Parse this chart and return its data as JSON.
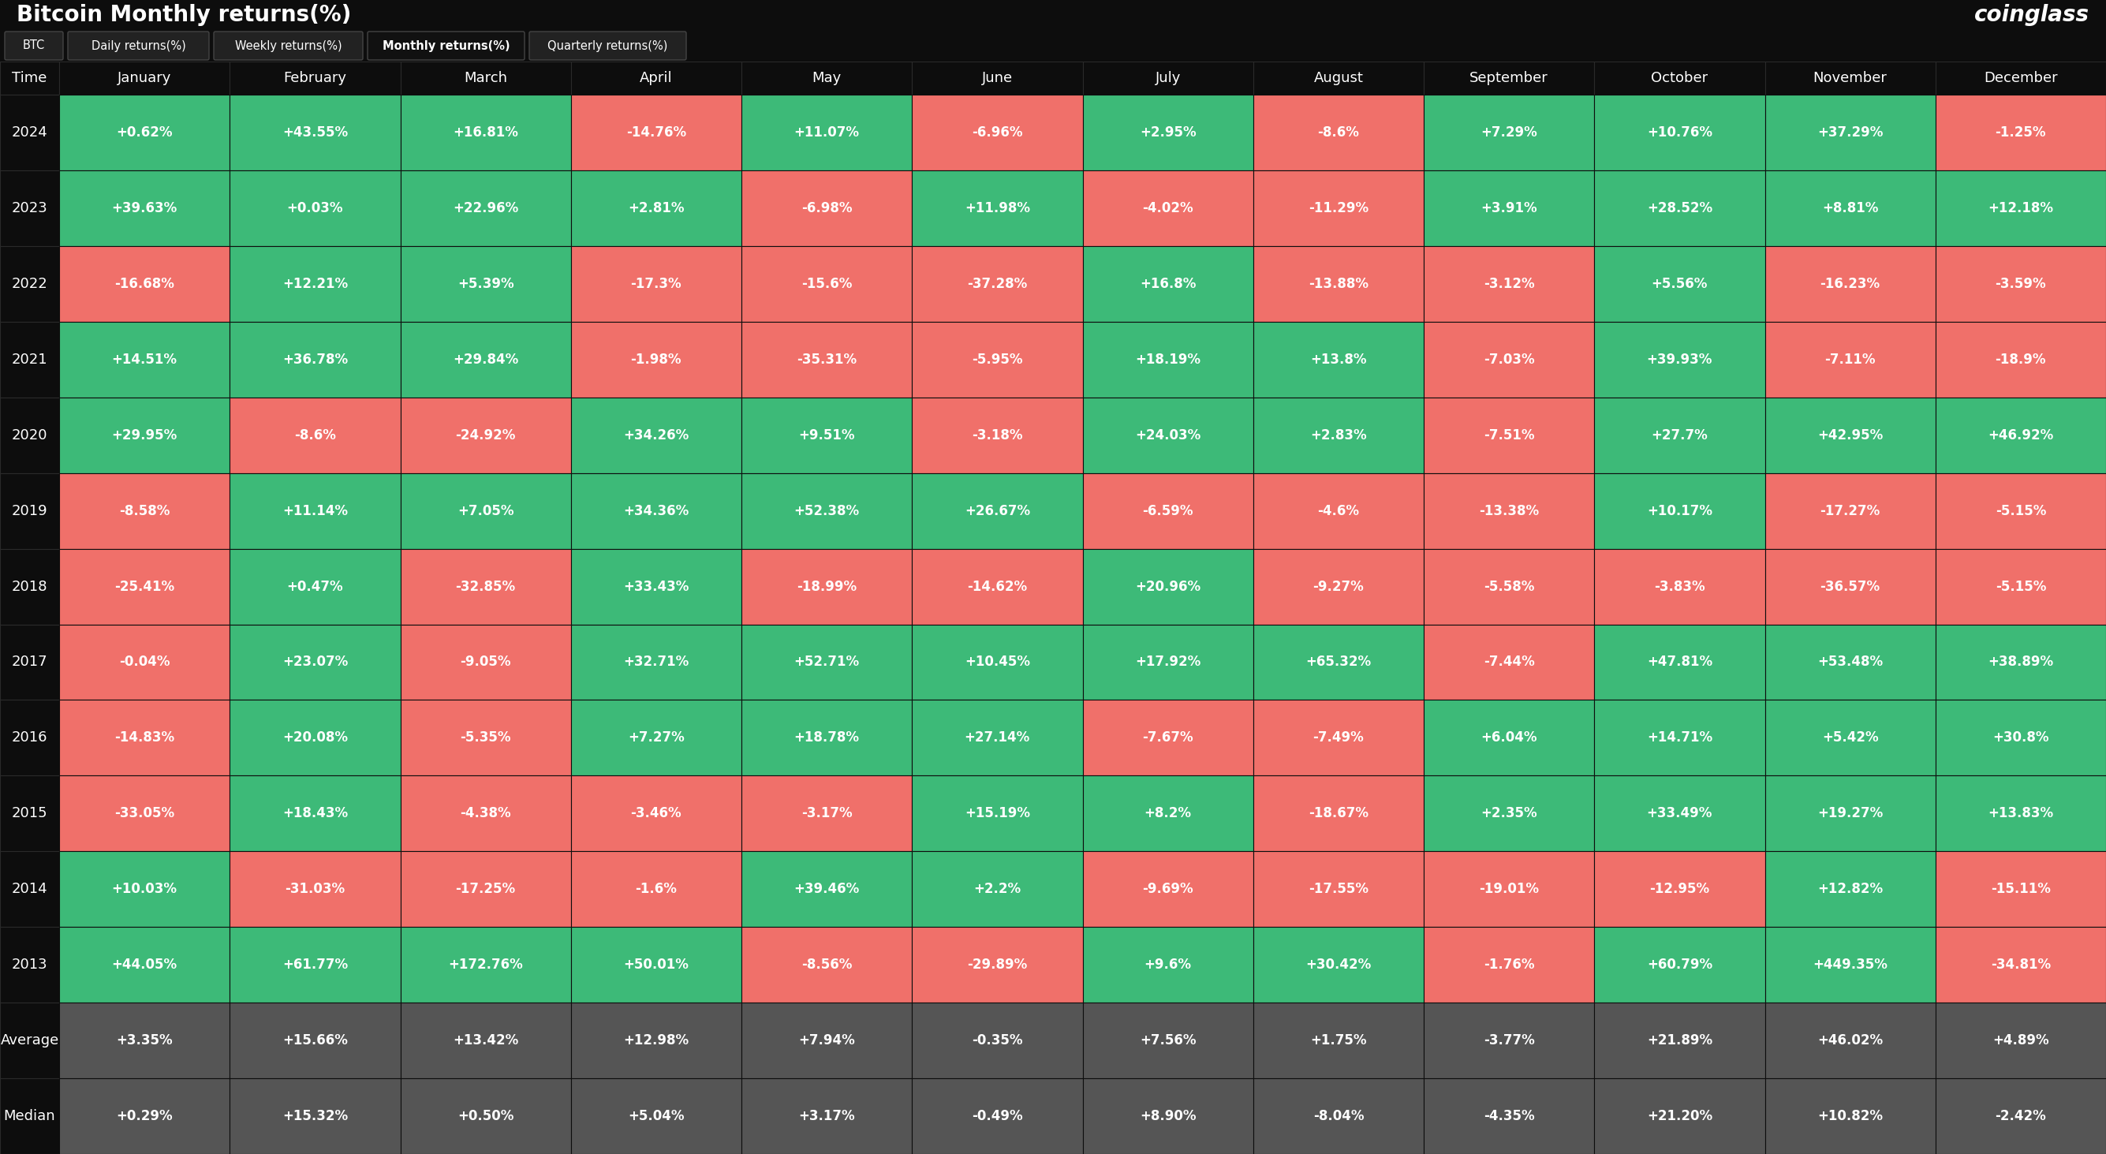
{
  "title": "Bitcoin Monthly returns(%)",
  "watermark": "coinglass",
  "background_color": "#0d0d0d",
  "header_text_color": "#ffffff",
  "cell_text_color": "#ffffff",
  "positive_color": "#3dba78",
  "negative_color": "#f0706a",
  "avg_med_color": "#555555",
  "columns": [
    "Time",
    "January",
    "February",
    "March",
    "April",
    "May",
    "June",
    "July",
    "August",
    "September",
    "October",
    "November",
    "December"
  ],
  "rows": [
    {
      "year": "2024",
      "values": [
        "+0.62%",
        "+43.55%",
        "+16.81%",
        "-14.76%",
        "+11.07%",
        "-6.96%",
        "+2.95%",
        "-8.6%",
        "+7.29%",
        "+10.76%",
        "+37.29%",
        "-1.25%"
      ]
    },
    {
      "year": "2023",
      "values": [
        "+39.63%",
        "+0.03%",
        "+22.96%",
        "+2.81%",
        "-6.98%",
        "+11.98%",
        "-4.02%",
        "-11.29%",
        "+3.91%",
        "+28.52%",
        "+8.81%",
        "+12.18%"
      ]
    },
    {
      "year": "2022",
      "values": [
        "-16.68%",
        "+12.21%",
        "+5.39%",
        "-17.3%",
        "-15.6%",
        "-37.28%",
        "+16.8%",
        "-13.88%",
        "-3.12%",
        "+5.56%",
        "-16.23%",
        "-3.59%"
      ]
    },
    {
      "year": "2021",
      "values": [
        "+14.51%",
        "+36.78%",
        "+29.84%",
        "-1.98%",
        "-35.31%",
        "-5.95%",
        "+18.19%",
        "+13.8%",
        "-7.03%",
        "+39.93%",
        "-7.11%",
        "-18.9%"
      ]
    },
    {
      "year": "2020",
      "values": [
        "+29.95%",
        "-8.6%",
        "-24.92%",
        "+34.26%",
        "+9.51%",
        "-3.18%",
        "+24.03%",
        "+2.83%",
        "-7.51%",
        "+27.7%",
        "+42.95%",
        "+46.92%"
      ]
    },
    {
      "year": "2019",
      "values": [
        "-8.58%",
        "+11.14%",
        "+7.05%",
        "+34.36%",
        "+52.38%",
        "+26.67%",
        "-6.59%",
        "-4.6%",
        "-13.38%",
        "+10.17%",
        "-17.27%",
        "-5.15%"
      ]
    },
    {
      "year": "2018",
      "values": [
        "-25.41%",
        "+0.47%",
        "-32.85%",
        "+33.43%",
        "-18.99%",
        "-14.62%",
        "+20.96%",
        "-9.27%",
        "-5.58%",
        "-3.83%",
        "-36.57%",
        "-5.15%"
      ]
    },
    {
      "year": "2017",
      "values": [
        "-0.04%",
        "+23.07%",
        "-9.05%",
        "+32.71%",
        "+52.71%",
        "+10.45%",
        "+17.92%",
        "+65.32%",
        "-7.44%",
        "+47.81%",
        "+53.48%",
        "+38.89%"
      ]
    },
    {
      "year": "2016",
      "values": [
        "-14.83%",
        "+20.08%",
        "-5.35%",
        "+7.27%",
        "+18.78%",
        "+27.14%",
        "-7.67%",
        "-7.49%",
        "+6.04%",
        "+14.71%",
        "+5.42%",
        "+30.8%"
      ]
    },
    {
      "year": "2015",
      "values": [
        "-33.05%",
        "+18.43%",
        "-4.38%",
        "-3.46%",
        "-3.17%",
        "+15.19%",
        "+8.2%",
        "-18.67%",
        "+2.35%",
        "+33.49%",
        "+19.27%",
        "+13.83%"
      ]
    },
    {
      "year": "2014",
      "values": [
        "+10.03%",
        "-31.03%",
        "-17.25%",
        "-1.6%",
        "+39.46%",
        "+2.2%",
        "-9.69%",
        "-17.55%",
        "-19.01%",
        "-12.95%",
        "+12.82%",
        "-15.11%"
      ]
    },
    {
      "year": "2013",
      "values": [
        "+44.05%",
        "+61.77%",
        "+172.76%",
        "+50.01%",
        "-8.56%",
        "-29.89%",
        "+9.6%",
        "+30.42%",
        "-1.76%",
        "+60.79%",
        "+449.35%",
        "-34.81%"
      ]
    }
  ],
  "average": [
    "+3.35%",
    "+15.66%",
    "+13.42%",
    "+12.98%",
    "+7.94%",
    "-0.35%",
    "+7.56%",
    "+1.75%",
    "-3.77%",
    "+21.89%",
    "+46.02%",
    "+4.89%"
  ],
  "median": [
    "+0.29%",
    "+15.32%",
    "+0.50%",
    "+5.04%",
    "+3.17%",
    "-0.49%",
    "+8.90%",
    "-8.04%",
    "-4.35%",
    "+21.20%",
    "+10.82%",
    "-2.42%"
  ],
  "tab_buttons": [
    "BTC",
    "Daily returns(%)",
    "Weekly returns(%)",
    "Monthly returns(%)",
    "Quarterly returns(%)"
  ],
  "active_tab": "Monthly returns(%)",
  "title_fontsize": 20,
  "watermark_fontsize": 20,
  "header_fontsize": 13,
  "year_fontsize": 13,
  "cell_fontsize": 12
}
